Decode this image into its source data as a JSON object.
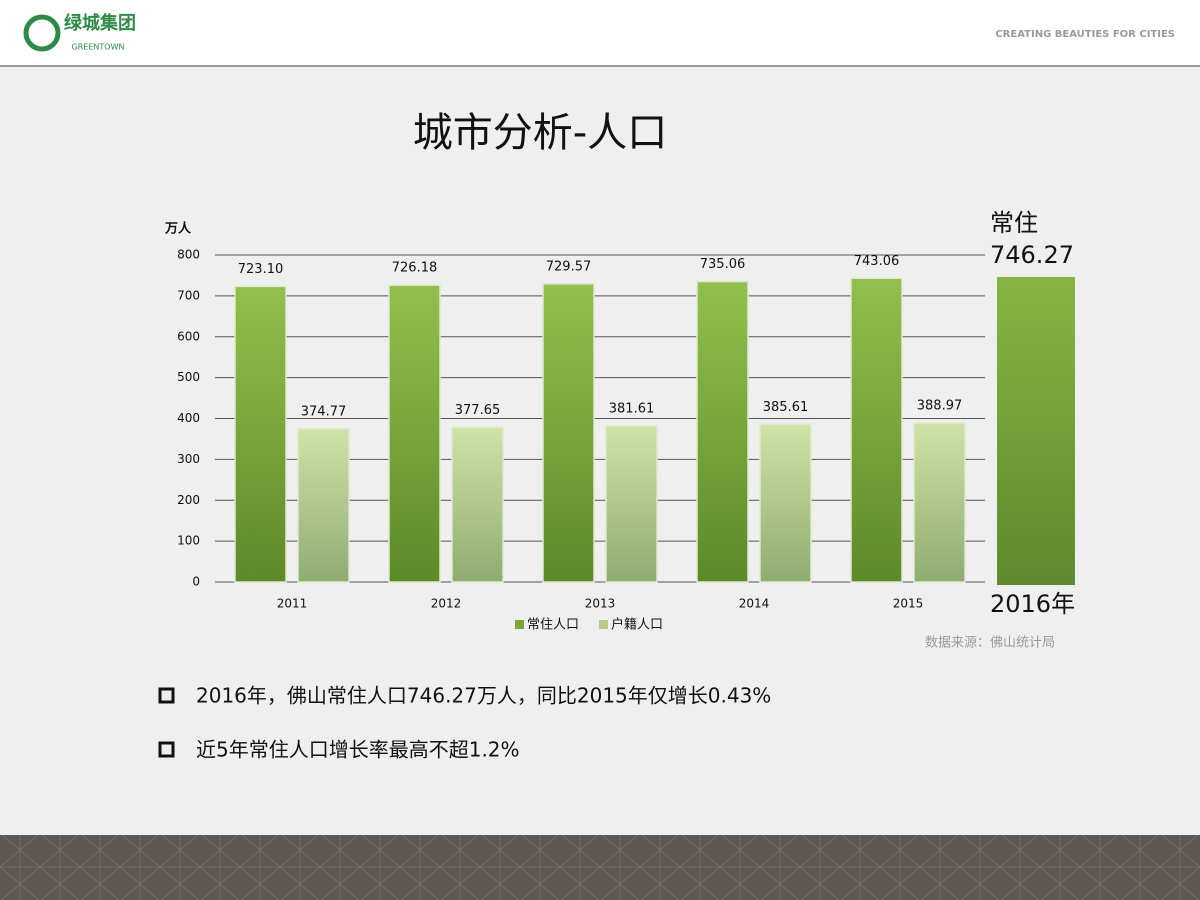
{
  "header": {
    "logo_text": "绿城集团",
    "logo_subtext": "GREENTOWN",
    "tagline": "CREATING BEAUTIES FOR CITIES"
  },
  "chart_data": {
    "type": "bar",
    "title": "城市分析-人口",
    "y_label": "万人",
    "categories": [
      "2011",
      "2012",
      "2013",
      "2014",
      "2015"
    ],
    "series": [
      {
        "name": "常住人口",
        "color": "#7aa63a",
        "values": [
          723.1,
          726.18,
          729.57,
          735.06,
          743.06
        ],
        "value_labels": [
          "723.10",
          "726.18",
          "729.57",
          "735.06",
          "743.06"
        ]
      },
      {
        "name": "户籍人口",
        "color": "#b5cf8a",
        "values": [
          374.77,
          377.65,
          381.61,
          385.61,
          388.97
        ]
      }
    ],
    "ylim": [
      0,
      800
    ],
    "yticks": [
      0,
      100,
      200,
      300,
      400,
      500,
      600,
      700,
      800
    ],
    "grid": true,
    "source": "数据来源：佛山统计局",
    "highlight": {
      "label": "常住",
      "value": 746.27,
      "category": "2016年",
      "color": "#6f9a32"
    }
  },
  "bullets": [
    "2016年，佛山常住人口746.27万人，同比2015年仅增长0.43%",
    "近5年常住人口增长率最高不超1.2%"
  ]
}
